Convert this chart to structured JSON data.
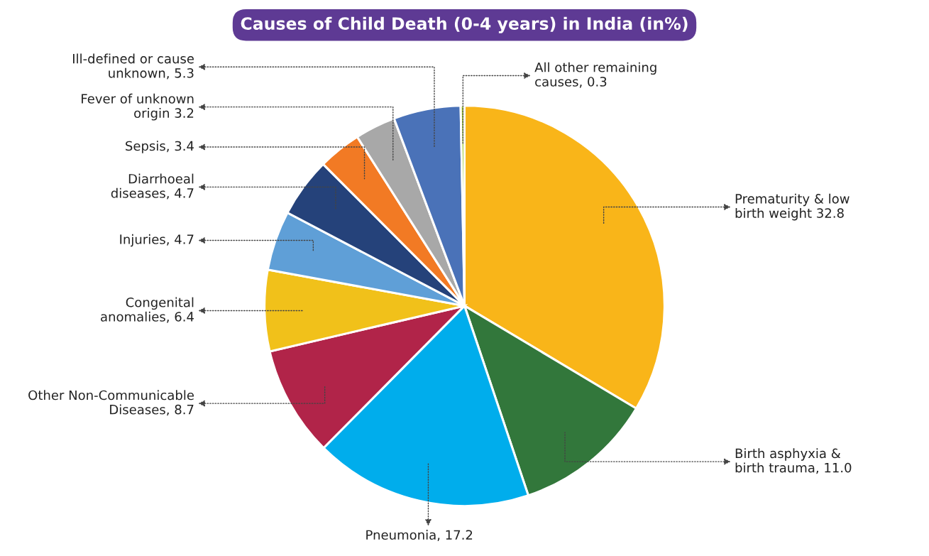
{
  "chart_data": {
    "type": "pie",
    "title": "Causes of Child Death (0-4 years) in India (in%)",
    "categories": [
      "Prematurity & low\nbirth weight 32.8",
      "Birth asphyxia &\nbirth trauma, 11.0",
      "Pneumonia, 17.2",
      "Other Non-Communicable\nDiseases, 8.7",
      "Congenital\nanomalies, 6.4",
      "Injuries, 4.7",
      "Diarrhoeal\ndiseases, 4.7",
      "Sepsis, 3.4",
      "Fever of unknown\norigin 3.2",
      "Ill-defined or cause\nunknown, 5.3",
      "All other remaining\ncauses, 0.3"
    ],
    "values": [
      32.8,
      11.0,
      17.2,
      8.7,
      6.4,
      4.7,
      4.7,
      3.4,
      3.2,
      5.3,
      0.3
    ],
    "colors": [
      "#f9b519",
      "#32773b",
      "#00adec",
      "#b12449",
      "#f1c11a",
      "#5f9fd7",
      "#25427a",
      "#f27a24",
      "#a8a8a8",
      "#4a72b8",
      "#a9cf3a"
    ]
  }
}
